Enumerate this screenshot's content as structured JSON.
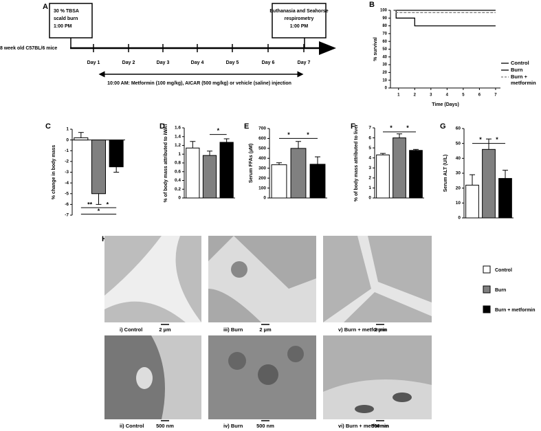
{
  "panel_labels": [
    "A",
    "B",
    "C",
    "D",
    "E",
    "F",
    "G",
    "H"
  ],
  "timeline": {
    "start_box": [
      "30 % TBSA",
      "scald burn",
      "1:00 PM"
    ],
    "end_box": [
      "Euthanasia and Seahorse",
      "respirometry",
      "1:00 PM"
    ],
    "mice": "8 week old C57BL/6 mice",
    "days": [
      "Day 1",
      "Day 2",
      "Day 3",
      "Day 4",
      "Day 5",
      "Day 6",
      "Day 7"
    ],
    "treatment": "10:00 AM: Metformin (100 mg/kg), AICAR (500 mg/kg) or vehicle (saline) injection"
  },
  "chart_data": [
    {
      "type": "line",
      "ylabel": "% survival",
      "xlabel": "Time (Days)",
      "x": [
        0.7,
        0.85,
        2,
        7
      ],
      "series": [
        {
          "name": "Control",
          "color": "#000000",
          "values": [
            100,
            100,
            100,
            100
          ]
        },
        {
          "name": "Burn",
          "color": "#000000",
          "values": [
            100,
            90,
            80,
            80
          ]
        },
        {
          "name": "Burn + metformin",
          "color": "#777777",
          "dashed": true,
          "values": [
            100,
            97,
            97,
            97
          ]
        }
      ],
      "xlim": [
        0.5,
        7.3
      ],
      "xticks": [
        1,
        2,
        3,
        4,
        5,
        6,
        7
      ],
      "ylim": [
        0,
        100
      ],
      "yticks": [
        0,
        10,
        20,
        30,
        40,
        50,
        60,
        70,
        80,
        90,
        100
      ]
    },
    {
      "type": "bar",
      "ylabel": "% change in body mass",
      "colors": [
        "#ffffff",
        "#808080",
        "#000000"
      ],
      "values": [
        0.2,
        -5,
        -2.5
      ],
      "errors": [
        0.5,
        1,
        0.5
      ],
      "ylim": [
        -7,
        1
      ],
      "yticks": [
        1,
        0,
        -1,
        -2,
        -3,
        -4,
        -5,
        -6,
        -7
      ],
      "significance": [
        "**",
        "*",
        "*"
      ]
    },
    {
      "type": "bar",
      "ylabel": "% of body mass attributed to iWAT",
      "colors": [
        "#ffffff",
        "#808080",
        "#000000"
      ],
      "values": [
        1.14,
        0.97,
        1.27
      ],
      "errors": [
        0.15,
        0.1,
        0.08
      ],
      "ylim": [
        0,
        1.6
      ],
      "yticks": [
        0,
        0.2,
        0.4,
        0.6,
        0.8,
        1,
        1.2,
        1.4,
        1.6
      ],
      "significance": [
        "*"
      ]
    },
    {
      "type": "bar",
      "ylabel": "Serum FFAs (µM)",
      "colors": [
        "#ffffff",
        "#808080",
        "#000000"
      ],
      "values": [
        335,
        500,
        340
      ],
      "errors": [
        20,
        70,
        75
      ],
      "ylim": [
        0,
        700
      ],
      "yticks": [
        0,
        100,
        200,
        300,
        400,
        500,
        600,
        700
      ],
      "significance": [
        "*",
        "*"
      ]
    },
    {
      "type": "bar",
      "ylabel": "% of body mass attributed to liver",
      "colors": [
        "#ffffff",
        "#808080",
        "#000000"
      ],
      "values": [
        4.3,
        6,
        4.75
      ],
      "errors": [
        0.15,
        0.4,
        0.1
      ],
      "ylim": [
        0,
        7
      ],
      "yticks": [
        0,
        1,
        2,
        3,
        4,
        5,
        6,
        7
      ],
      "significance": [
        "*",
        "*"
      ]
    },
    {
      "type": "bar",
      "ylabel": "Serum ALT (U/L)",
      "colors": [
        "#ffffff",
        "#808080",
        "#000000"
      ],
      "values": [
        22,
        46,
        26.5
      ],
      "errors": [
        7,
        7,
        5.5
      ],
      "ylim": [
        0,
        60
      ],
      "yticks": [
        0,
        10,
        20,
        30,
        40,
        50,
        60
      ],
      "significance": [
        "*",
        "*"
      ]
    }
  ],
  "micrographs": {
    "captions": [
      "i) Control",
      "iii) Burn",
      "v) Burn + metformin",
      "ii) Control",
      "iv) Burn",
      "vi) Burn + metformin"
    ],
    "scale_bars": [
      "2 µm",
      "2 µm",
      "2 µm",
      "500 nm",
      "500 nm",
      "500 nm"
    ],
    "legend": [
      "Control",
      "Burn",
      "Burn + metformin"
    ]
  }
}
